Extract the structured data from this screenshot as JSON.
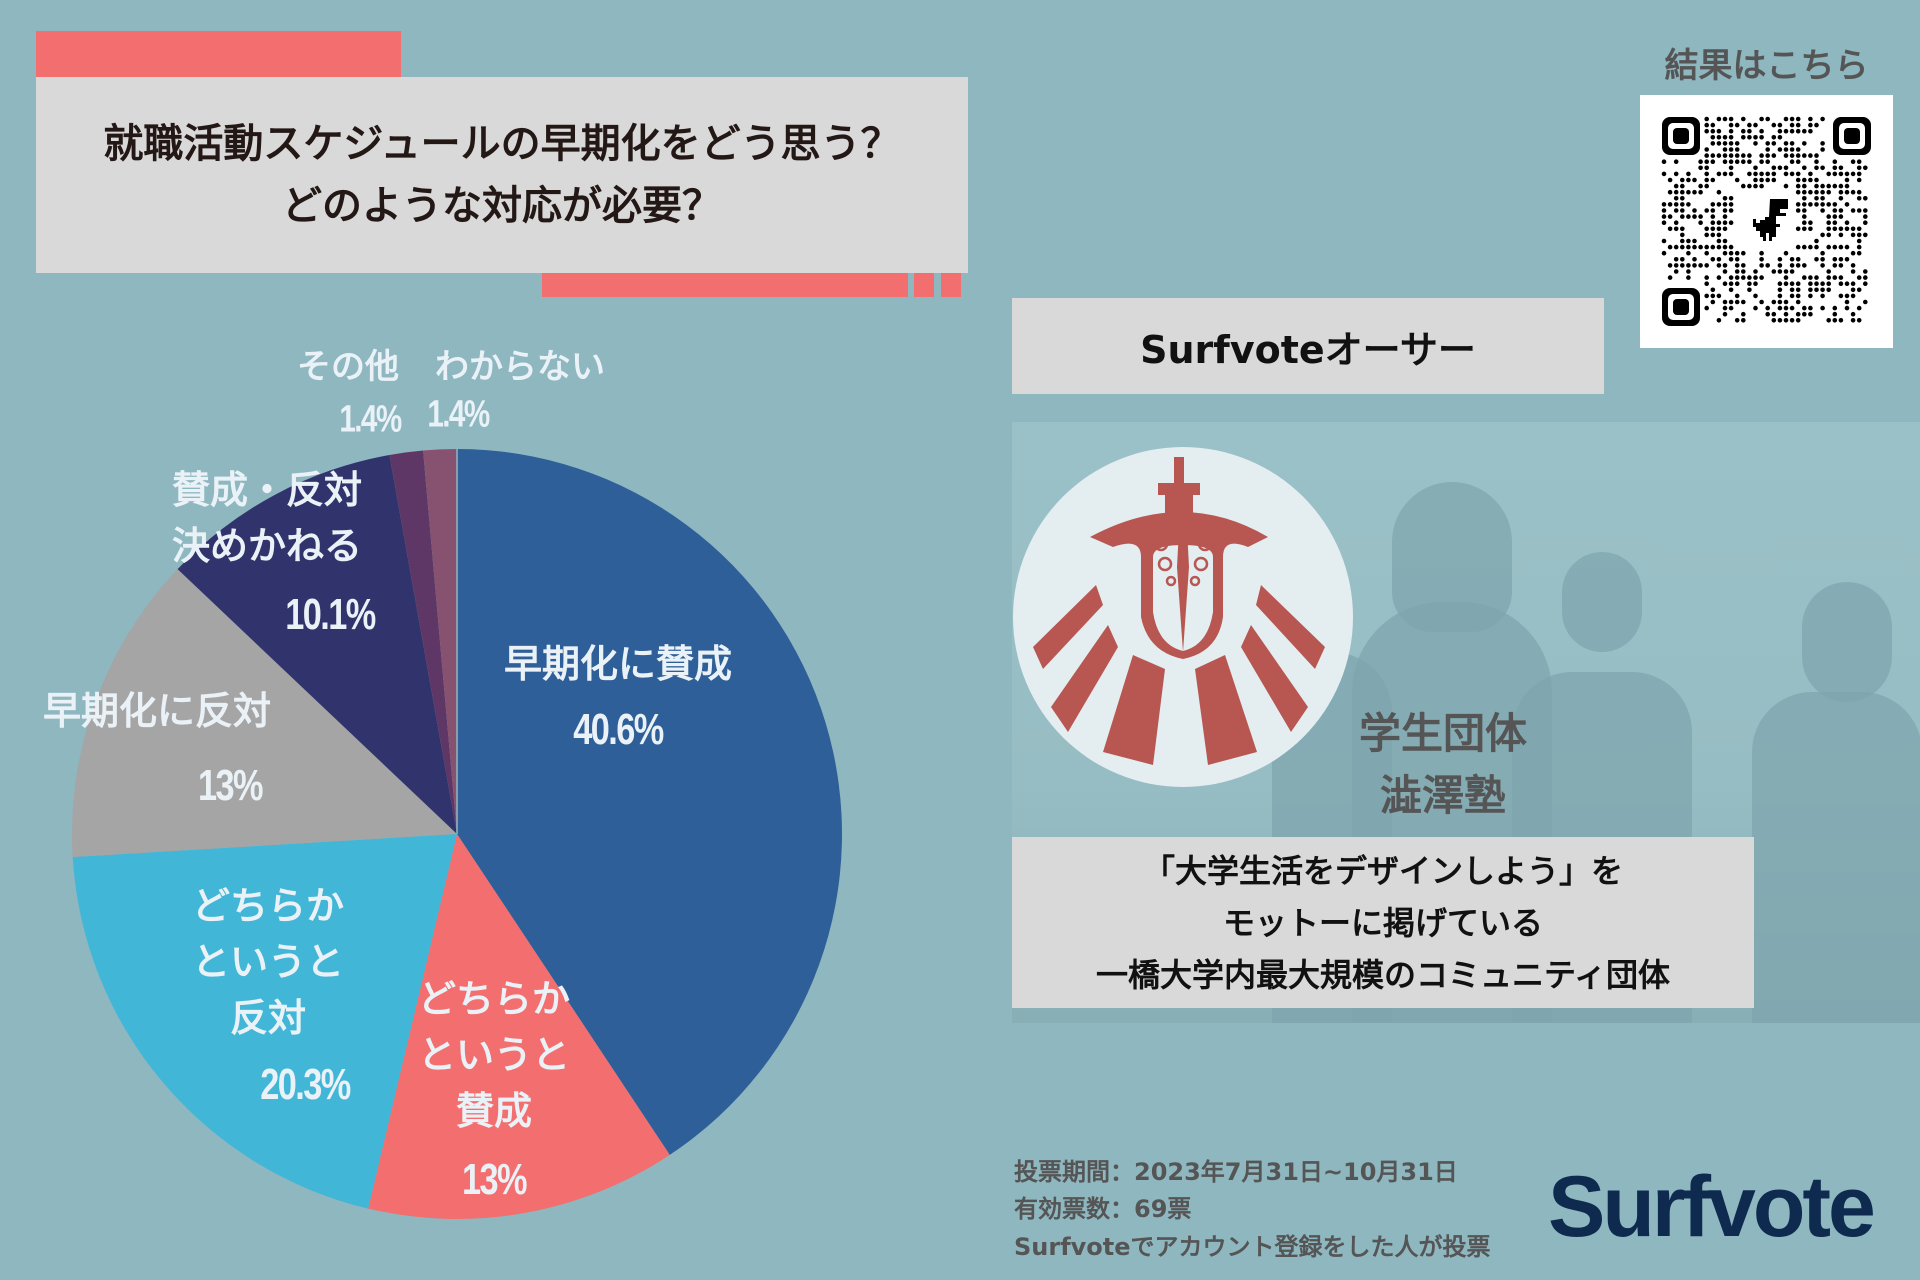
{
  "colors": {
    "background": "#8EB7C0",
    "accent_red": "#F36E6E",
    "panel_gray": "#D9D9D9",
    "brand_navy": "#0E2A4F"
  },
  "header": {
    "title_line1": "就職活動スケジュールの早期化をどう思う？",
    "title_line2": "どのような対応が必要？"
  },
  "chart_data": {
    "type": "pie",
    "title": "就職活動スケジュールの早期化をどう思う？どのような対応が必要？",
    "start_angle": "12 o'clock",
    "direction": "clockwise",
    "categories": [
      "早期化に賛成",
      "どちらかというと賛成",
      "どちらかというと反対",
      "早期化に反対",
      "賛成・反対決めかねる",
      "その他",
      "わからない"
    ],
    "values": [
      40.6,
      13,
      20.3,
      13,
      10.1,
      1.4,
      1.4
    ],
    "unit": "%",
    "colors": [
      "#2E5F98",
      "#F36E6E",
      "#42B6D7",
      "#A5A5A5",
      "#31336C",
      "#5E3767",
      "#875270"
    ],
    "legend": "none (labels placed on/near slices)"
  },
  "pie_labels": [
    {
      "lines": [
        "早期化に賛成"
      ],
      "pct": "40.6%"
    },
    {
      "lines": [
        "どちらか",
        "というと",
        "賛成"
      ],
      "pct": "13%"
    },
    {
      "lines": [
        "どちらか",
        "というと",
        "反対"
      ],
      "pct": "20.3%"
    },
    {
      "lines": [
        "早期化に反対"
      ],
      "pct": "13%"
    },
    {
      "lines": [
        "賛成・反対",
        "決めかねる"
      ],
      "pct": "10.1%"
    },
    {
      "lines": [
        "その他"
      ],
      "pct": "1.4%"
    },
    {
      "lines": [
        "わからない"
      ],
      "pct": "1.4%"
    }
  ],
  "qr": {
    "title": "結果はこちら",
    "icon": "qr-code-with-dinosaur"
  },
  "author": {
    "heading": "Surfvoteオーサー",
    "org_type": "学生団体",
    "org_name": "澁澤塾",
    "description_lines": [
      "「大学生活をデザインしよう」を",
      "モットーに掲げている",
      "一橋大学内最大規模のコミュニティ団体"
    ]
  },
  "footer": {
    "period": "投票期間：2023年7月31日~10月31日",
    "valid_votes": "有効票数：69票",
    "note": "Surfvoteでアカウント登録をした人が投票",
    "brand": "Surfvote"
  }
}
